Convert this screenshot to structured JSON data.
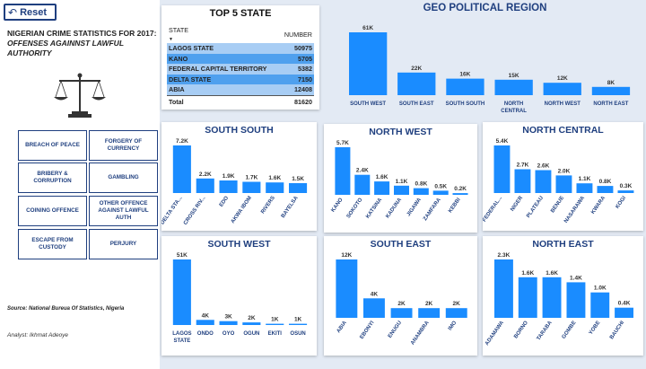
{
  "reset": {
    "label": "Reset",
    "icon": "reset-arrow-icon"
  },
  "title": {
    "line1": "NIGERIAN CRIME STATISTICS FOR 2017:",
    "line2": "OFFENSES AGAINNST LAWFUL AUTHORITY"
  },
  "logo_icon": "scales-of-justice-icon",
  "offenses": [
    "BREACH OF PEACE",
    "FORGERY OF CURRENCY",
    "BRIBERY & CORRUPTION",
    "GAMBLING",
    "COINING OFFENCE",
    "OTHER OFFENCE AGAINST LAWFUL AUTH",
    "ESCAPE FROM CUSTODY",
    "PERJURY"
  ],
  "source": "Source: National Bureua Of Statistics, Nigeria",
  "analyst": "Analyst: Ikhmat Adeoye",
  "top5": {
    "title": "TOP 5 STATE",
    "col_state": "STATE",
    "col_number": "NUMBER",
    "rows": [
      {
        "state": "LAGOS STATE",
        "number": "50975"
      },
      {
        "state": "KANO",
        "number": "5705"
      },
      {
        "state": "FEDERAL CAPITAL TERRITORY",
        "number": "5382"
      },
      {
        "state": "DELTA STATE",
        "number": "7150"
      },
      {
        "state": "ABIA",
        "number": "12408"
      }
    ],
    "total_label": "Total",
    "total_value": "81620"
  },
  "colors": {
    "bar": "#1a8cff",
    "title": "#1f3f7f",
    "panel_bg": "#e3eaf4"
  },
  "chart_data": [
    {
      "type": "bar",
      "title": "GEO POLITICAL REGION",
      "categories": [
        "SOUTH WEST",
        "SOUTH EAST",
        "SOUTH SOUTH",
        "NORTH CENTRAL",
        "NORTH WEST",
        "NORTH EAST"
      ],
      "values": [
        61000,
        22000,
        16000,
        15000,
        12000,
        8000
      ],
      "labels": [
        "61K",
        "22K",
        "16K",
        "15K",
        "12K",
        "8K"
      ]
    },
    {
      "type": "bar",
      "title": "SOUTH SOUTH",
      "categories": [
        "DELTA STA...",
        "CROSS RIV...",
        "EDO",
        "AKWA IBOM",
        "RIVERS",
        "BAYELSA"
      ],
      "values": [
        7200,
        2200,
        1900,
        1700,
        1600,
        1500
      ],
      "labels": [
        "7.2K",
        "2.2K",
        "1.9K",
        "1.7K",
        "1.6K",
        "1.5K"
      ]
    },
    {
      "type": "bar",
      "title": "NORTH WEST",
      "categories": [
        "KANO",
        "SOKOTO",
        "KATSINA",
        "KADUNA",
        "JIGAWA",
        "ZAMFARA",
        "KEBBI"
      ],
      "values": [
        5700,
        2400,
        1600,
        1100,
        800,
        500,
        200
      ],
      "labels": [
        "5.7K",
        "2.4K",
        "1.6K",
        "1.1K",
        "0.8K",
        "0.5K",
        "0.2K"
      ]
    },
    {
      "type": "bar",
      "title": "NORTH CENTRAL",
      "categories": [
        "FEDERAL...",
        "NIGER",
        "PLATEAU",
        "BENUE",
        "NASARAWA",
        "KWARA",
        "KOGI"
      ],
      "values": [
        5400,
        2700,
        2600,
        2000,
        1100,
        800,
        300
      ],
      "labels": [
        "5.4K",
        "2.7K",
        "2.6K",
        "2.0K",
        "1.1K",
        "0.8K",
        "0.3K"
      ]
    },
    {
      "type": "bar",
      "title": "SOUTH WEST",
      "categories": [
        "LAGOS STATE",
        "ONDO",
        "OYO",
        "OGUN",
        "EKITI",
        "OSUN"
      ],
      "values": [
        51000,
        4000,
        3000,
        2000,
        1000,
        1000
      ],
      "labels": [
        "51K",
        "4K",
        "3K",
        "2K",
        "1K",
        "1K"
      ]
    },
    {
      "type": "bar",
      "title": "SOUTH EAST",
      "categories": [
        "ABIA",
        "EBONYI",
        "ENUGU",
        "ANAMBRA",
        "IMO"
      ],
      "values": [
        12000,
        4000,
        2000,
        2000,
        2000
      ],
      "labels": [
        "12K",
        "4K",
        "2K",
        "2K",
        "2K"
      ]
    },
    {
      "type": "bar",
      "title": "NORTH EAST",
      "categories": [
        "ADAMAWA",
        "BORNO",
        "TARABA",
        "GOMBE",
        "YOBE",
        "BAUCHI"
      ],
      "values": [
        2300,
        1600,
        1600,
        1400,
        1000,
        400
      ],
      "labels": [
        "2.3K",
        "1.6K",
        "1.6K",
        "1.4K",
        "1.0K",
        "0.4K"
      ]
    }
  ]
}
